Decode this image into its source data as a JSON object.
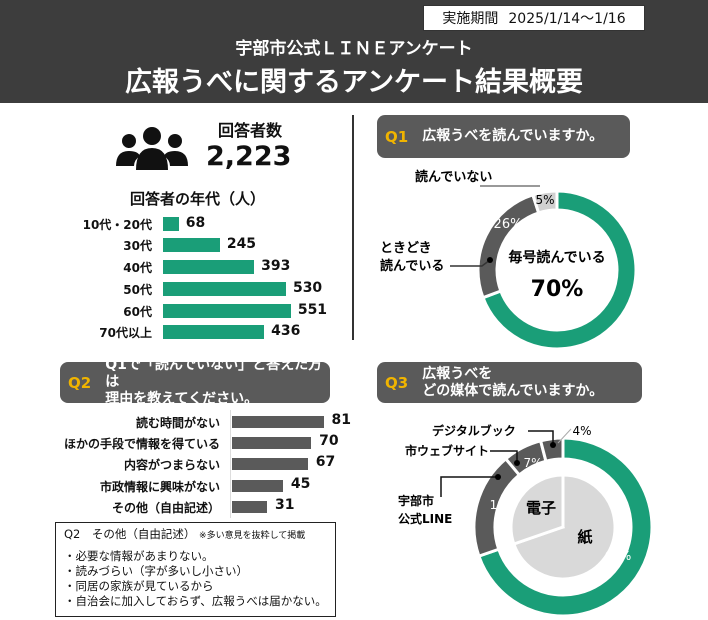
{
  "header": {
    "date_label": "実施期間",
    "date_value": "2025/1/14～1/16",
    "subtitle": "宇部市公式ＬＩＮＥアンケート",
    "title": "広報うべに関するアンケート結果概要"
  },
  "respondents": {
    "label": "回答者数",
    "count": "2,223",
    "icon": "people-icon"
  },
  "chart_data": [
    {
      "type": "bar",
      "title": "回答者の年代（人）",
      "orientation": "horizontal",
      "categories": [
        "10代・20代",
        "30代",
        "40代",
        "50代",
        "60代",
        "70代以上"
      ],
      "values": [
        68,
        245,
        393,
        530,
        551,
        436
      ],
      "color": "#1a9e78"
    },
    {
      "type": "pie",
      "title": "広報うべを読んでいますか。",
      "question": "Q1",
      "donut": true,
      "categories": [
        "毎号読んでいる",
        "ときどき読んでいる",
        "読んでいない"
      ],
      "values": [
        70,
        26,
        5
      ],
      "labels": [
        "70%",
        "26%",
        "5%"
      ],
      "colors": [
        "#1a9e78",
        "#5a5a5a",
        "#d0d0d0"
      ]
    },
    {
      "type": "bar",
      "title": "Q1で「読んでいない」と答えた方は理由を教えてください。",
      "question": "Q2",
      "orientation": "horizontal",
      "categories": [
        "読む時間がない",
        "ほかの手段で情報を得ている",
        "内容がつまらない",
        "市政情報に興味がない",
        "その他（自由記述）"
      ],
      "values": [
        81,
        70,
        67,
        45,
        31
      ],
      "color": "#5a5a5a"
    },
    {
      "type": "pie",
      "title": "広報うべをどの媒体で読んでいますか。",
      "question": "Q3",
      "donut": true,
      "categories": [
        "紙",
        "宇部市公式LINE",
        "市ウェブサイト",
        "デジタルブック"
      ],
      "values": [
        69,
        19,
        7,
        4
      ],
      "labels": [
        "69%",
        "19%",
        "7%",
        "4%"
      ],
      "colors": [
        "#1a9e78",
        "#5a5a5a",
        "#5a5a5a",
        "#5a5a5a"
      ],
      "inner_groups": [
        {
          "label": "紙",
          "value": 69
        },
        {
          "label": "電子",
          "value": 30
        }
      ]
    }
  ],
  "q1": {
    "num": "Q1",
    "text": "広報うべを読んでいますか。",
    "center_label": "毎号読んでいる",
    "center_value": "70%",
    "label_sometimes": "ときどき\n読んでいる",
    "label_not": "読んでいない"
  },
  "q2": {
    "num": "Q2",
    "line1": "Q1で「読んでいない」と答えた方は",
    "line2": "理由を教えてください。"
  },
  "q3": {
    "num": "Q3",
    "line1": "広報うべを",
    "line2": "どの媒体で読んでいますか。",
    "label_line": "宇部市\n公式LINE",
    "label_web": "市ウェブサイト",
    "label_digital": "デジタルブック",
    "inner_paper": "紙",
    "inner_digital": "電子"
  },
  "free": {
    "title": "Q2　その他（自由記述）",
    "note": "※多い意見を抜粋して掲載",
    "items": [
      "・必要な情報があまりない。",
      "・読みづらい（字が多いし小さい）",
      "・同居の家族が見ているから",
      "・自治会に加入しておらず、広報うべは届かない。"
    ]
  }
}
